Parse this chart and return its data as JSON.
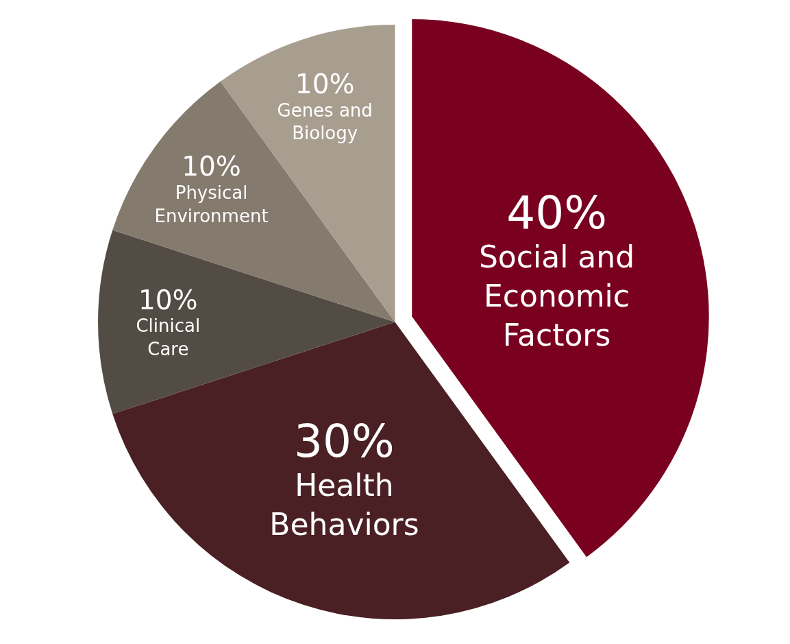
{
  "chart_data": {
    "type": "pie",
    "categories": [
      "Social and Economic Factors",
      "Health Behaviors",
      "Clinical Care",
      "Physical Environment",
      "Genes and Biology"
    ],
    "values": [
      40,
      30,
      10,
      10,
      10
    ],
    "value_labels": [
      "40%",
      "30%",
      "10%",
      "10%",
      "10%"
    ],
    "colors": [
      "#7a0020",
      "#4a2024",
      "#534c44",
      "#857a6e",
      "#a89e90"
    ],
    "legend": false
  }
}
